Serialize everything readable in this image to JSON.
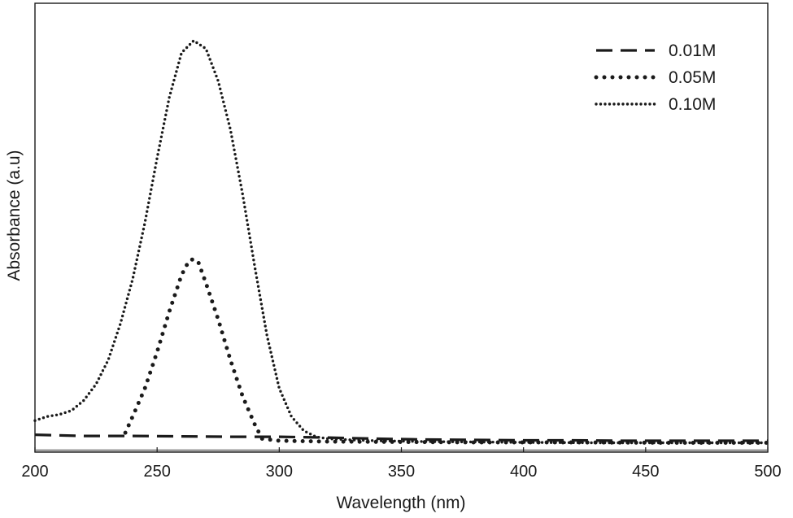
{
  "chart_data": {
    "type": "line",
    "title": "",
    "xlabel": "Wavelength (nm)",
    "ylabel": "Absorbance (a.u)",
    "xlim": [
      200,
      500
    ],
    "ylim": [
      0,
      1.0
    ],
    "xticks": [
      "200",
      "250",
      "300",
      "350",
      "400",
      "450",
      "500"
    ],
    "xtick_values": [
      200,
      250,
      300,
      350,
      400,
      450,
      500
    ],
    "yticks_shown": false,
    "grid": false,
    "legend_position": "top-right",
    "series": [
      {
        "name": "0.01M",
        "style": "dashed",
        "color": "#1a1a1a",
        "x": [
          200,
          220,
          240,
          260,
          280,
          300,
          320,
          340,
          360,
          380,
          400,
          420,
          440,
          460,
          480,
          500
        ],
        "y": [
          0.025,
          0.022,
          0.022,
          0.021,
          0.02,
          0.02,
          0.018,
          0.015,
          0.013,
          0.012,
          0.011,
          0.011,
          0.01,
          0.01,
          0.01,
          0.01
        ]
      },
      {
        "name": "0.05M",
        "style": "dotted-heavy",
        "color": "#1a1a1a",
        "x": [
          237,
          240,
          245,
          250,
          255,
          260,
          263,
          265,
          267,
          270,
          275,
          280,
          285,
          290,
          293,
          300,
          320,
          350,
          380,
          420,
          460,
          500
        ],
        "y": [
          0.03,
          0.07,
          0.14,
          0.23,
          0.33,
          0.42,
          0.455,
          0.46,
          0.45,
          0.4,
          0.31,
          0.21,
          0.12,
          0.05,
          0.015,
          0.01,
          0.008,
          0.007,
          0.006,
          0.006,
          0.005,
          0.005
        ]
      },
      {
        "name": "0.10M",
        "style": "dotted-fine",
        "color": "#1a1a1a",
        "x": [
          200,
          205,
          210,
          215,
          220,
          225,
          230,
          235,
          240,
          245,
          250,
          255,
          260,
          265,
          270,
          275,
          280,
          285,
          290,
          295,
          300,
          305,
          310,
          315,
          320,
          330,
          340,
          360,
          380,
          400,
          430,
          460,
          500
        ],
        "y": [
          0.06,
          0.07,
          0.075,
          0.085,
          0.11,
          0.15,
          0.21,
          0.3,
          0.41,
          0.55,
          0.71,
          0.86,
          0.97,
          1.0,
          0.98,
          0.9,
          0.78,
          0.62,
          0.44,
          0.27,
          0.14,
          0.07,
          0.035,
          0.02,
          0.015,
          0.012,
          0.01,
          0.008,
          0.007,
          0.006,
          0.005,
          0.005,
          0.005
        ]
      }
    ]
  }
}
